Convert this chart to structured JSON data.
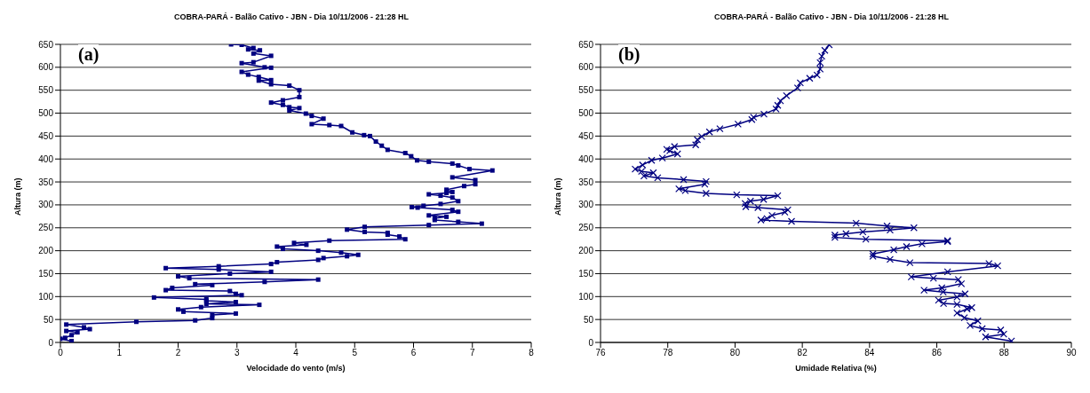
{
  "chart_data": [
    {
      "type": "line",
      "title": "COBRA-PARÁ - Balão Cativo - JBN - Dia 10/11/2006 - 21:28 HL",
      "xlabel": "Velocidade do vento (m/s)",
      "ylabel": "Altura (m)",
      "annotations": [
        "(a)"
      ],
      "marker": "square",
      "grid": "y",
      "xlim": [
        0,
        8
      ],
      "xticks": [
        0,
        1,
        2,
        3,
        4,
        5,
        6,
        7,
        8
      ],
      "ylim": [
        0,
        650
      ],
      "yticks": [
        0,
        50,
        100,
        150,
        200,
        250,
        300,
        350,
        400,
        450,
        500,
        550,
        600,
        650
      ],
      "series": [
        {
          "color": "#000080",
          "x": [
            0.19,
            0.0,
            0.08,
            0.19,
            0.29,
            0.1,
            0.5,
            0.4,
            0.1,
            1.29,
            2.29,
            2.58,
            2.58,
            2.98,
            2.09,
            2.0,
            2.39,
            3.38,
            2.48,
            2.98,
            2.48,
            2.48,
            1.59,
            3.08,
            2.98,
            2.88,
            1.79,
            1.9,
            2.58,
            2.29,
            3.47,
            4.38,
            2.19,
            2.0,
            2.88,
            3.58,
            2.69,
            1.79,
            2.69,
            3.58,
            3.68,
            4.38,
            4.47,
            4.87,
            5.06,
            4.77,
            4.38,
            3.78,
            3.68,
            4.18,
            3.97,
            4.57,
            5.86,
            5.76,
            5.56,
            5.56,
            5.17,
            4.87,
            5.17,
            6.26,
            7.16,
            6.76,
            6.36,
            6.36,
            6.56,
            6.26,
            6.76,
            6.66,
            6.07,
            5.97,
            6.17,
            6.46,
            6.76,
            6.66,
            6.46,
            6.26,
            6.56,
            6.66,
            6.56,
            6.86,
            7.05,
            7.05,
            6.66,
            7.34,
            6.95,
            6.76,
            6.66,
            6.26,
            6.06,
            5.96,
            5.86,
            5.56,
            5.46,
            5.36,
            5.26,
            5.16,
            4.96,
            4.77,
            4.57,
            4.27,
            4.47,
            4.27,
            4.17,
            3.89,
            4.06,
            3.89,
            3.78,
            3.58,
            3.78,
            4.06,
            4.06,
            3.89,
            3.58,
            3.37,
            3.58,
            3.37,
            3.19,
            3.08,
            3.58,
            3.47,
            3.08,
            3.28,
            3.58,
            3.28,
            3.39,
            3.19,
            3.28,
            3.08,
            2.9
          ],
          "values": [
            3,
            8,
            10,
            16,
            22,
            25,
            29,
            33,
            39,
            45,
            48,
            53,
            60,
            63,
            67,
            72,
            77,
            82,
            84,
            88,
            91,
            94,
            98,
            103,
            106,
            112,
            114,
            119,
            125,
            127,
            132,
            137,
            140,
            144,
            150,
            154,
            159,
            162,
            166,
            171,
            175,
            180,
            184,
            188,
            191,
            196,
            200,
            204,
            209,
            213,
            217,
            222,
            225,
            231,
            235,
            239,
            241,
            246,
            252,
            256,
            259,
            263,
            267,
            271,
            274,
            277,
            285,
            289,
            294,
            295,
            298,
            302,
            308,
            316,
            320,
            323,
            326,
            328,
            333,
            341,
            345,
            354,
            360,
            375,
            378,
            386,
            390,
            394,
            397,
            406,
            413,
            420,
            429,
            438,
            450,
            452,
            458,
            472,
            474,
            476,
            488,
            494,
            499,
            506,
            511,
            513,
            518,
            523,
            528,
            535,
            550,
            560,
            563,
            571,
            572,
            579,
            584,
            590,
            599,
            600,
            609,
            611,
            625,
            630,
            637,
            639,
            642,
            649,
            650
          ]
        }
      ]
    },
    {
      "type": "line",
      "title": "COBRA-PARÁ - Balão Cativo - JBN - Dia 10/11/2006 - 21:28 HL",
      "xlabel": "Umidade Relativa (%)",
      "ylabel": "Altura (m)",
      "annotations": [
        "(b)"
      ],
      "marker": "cross",
      "grid": "y",
      "xlim": [
        76,
        90
      ],
      "xticks": [
        76,
        78,
        80,
        82,
        84,
        86,
        88,
        90
      ],
      "ylim": [
        0,
        650
      ],
      "yticks": [
        0,
        50,
        100,
        150,
        200,
        250,
        300,
        350,
        400,
        450,
        500,
        550,
        600,
        650
      ],
      "series": [
        {
          "color": "#000080",
          "x": [
            88.22,
            87.45,
            87.99,
            87.9,
            87.35,
            86.99,
            87.22,
            86.82,
            86.6,
            86.9,
            87.04,
            86.6,
            86.2,
            86.05,
            86.6,
            86.84,
            86.19,
            85.62,
            86.15,
            86.73,
            86.64,
            85.9,
            85.24,
            86.32,
            87.81,
            87.55,
            85.2,
            84.61,
            84.1,
            84.1,
            84.72,
            85.1,
            85.56,
            86.32,
            86.32,
            83.89,
            82.97,
            82.97,
            83.3,
            83.8,
            84.61,
            85.32,
            84.52,
            83.6,
            81.68,
            80.77,
            80.95,
            81.1,
            81.48,
            81.57,
            80.68,
            80.32,
            80.3,
            80.46,
            80.85,
            81.27,
            80.05,
            79.14,
            78.52,
            78.33,
            79.1,
            79.14,
            78.47,
            77.7,
            77.29,
            77.57,
            77.22,
            77.03,
            77.25,
            77.52,
            77.84,
            78.29,
            78.06,
            77.97,
            78.2,
            78.83,
            78.88,
            79.01,
            79.24,
            79.55,
            80.09,
            80.5,
            80.55,
            80.86,
            81.22,
            81.27,
            81.35,
            81.53,
            81.86,
            81.94,
            82.22,
            82.44,
            82.53,
            82.53,
            82.58,
            82.67,
            82.8
          ],
          "values": [
            3,
            12,
            18,
            27,
            30,
            37,
            47,
            54,
            64,
            73,
            76,
            83,
            85,
            92,
            99,
            106,
            110,
            114,
            119,
            128,
            137,
            140,
            143,
            154,
            167,
            172,
            174,
            181,
            188,
            193,
            202,
            209,
            215,
            220,
            222,
            225,
            229,
            234,
            237,
            241,
            245,
            250,
            254,
            260,
            264,
            267,
            270,
            277,
            284,
            289,
            294,
            296,
            303,
            308,
            312,
            320,
            322,
            325,
            331,
            335,
            345,
            351,
            355,
            359,
            363,
            370,
            373,
            378,
            387,
            397,
            402,
            411,
            418,
            421,
            427,
            431,
            442,
            449,
            459,
            466,
            476,
            486,
            491,
            498,
            509,
            517,
            527,
            538,
            555,
            566,
            576,
            583,
            596,
            610,
            624,
            637,
            649
          ]
        }
      ]
    }
  ]
}
